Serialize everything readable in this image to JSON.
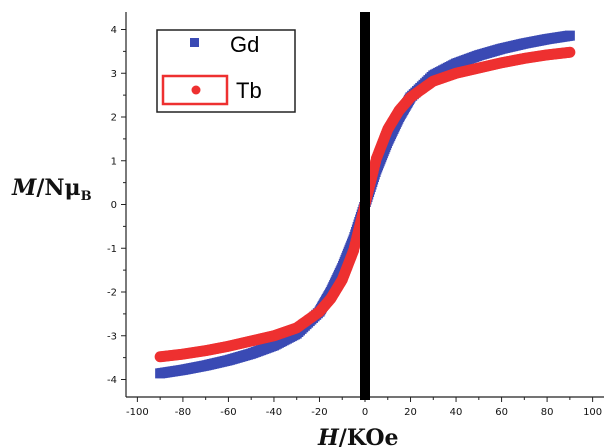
{
  "chart_data": {
    "type": "scatter",
    "title": "",
    "xlabel": "H/KOe",
    "ylabel": "M/NμB",
    "xlim": [
      -105,
      105
    ],
    "ylim": [
      -4.4,
      4.4
    ],
    "xticks": [
      "-100",
      "-80",
      "-60",
      "-40",
      "-20",
      "0",
      "20",
      "40",
      "60",
      "80",
      "100"
    ],
    "yticks": [
      "4",
      "3",
      "2",
      "1",
      "0",
      "-1",
      "-2",
      "-3",
      "-4"
    ],
    "vertical_line_x": 0,
    "legend_position": "top-left",
    "series": [
      {
        "name": "Gd",
        "color": "#3a4ab4",
        "marker": "square",
        "x": [
          -90,
          -80,
          -70,
          -60,
          -50,
          -40,
          -30,
          -20,
          -15,
          -10,
          -5,
          0,
          5,
          10,
          15,
          20,
          30,
          40,
          50,
          60,
          70,
          80,
          90
        ],
        "y": [
          -3.86,
          -3.78,
          -3.68,
          -3.56,
          -3.41,
          -3.22,
          -2.95,
          -2.45,
          -2.0,
          -1.45,
          -0.8,
          0,
          0.8,
          1.45,
          2.0,
          2.45,
          2.95,
          3.22,
          3.41,
          3.56,
          3.68,
          3.78,
          3.86
        ]
      },
      {
        "name": "Tb",
        "color": "#ee3030",
        "marker": "circle",
        "x": [
          -90,
          -80,
          -70,
          -60,
          -50,
          -40,
          -30,
          -20,
          -15,
          -10,
          -5,
          0,
          5,
          10,
          15,
          20,
          30,
          40,
          50,
          60,
          70,
          80,
          90
        ],
        "y": [
          -3.48,
          -3.42,
          -3.34,
          -3.24,
          -3.12,
          -3.0,
          -2.82,
          -2.45,
          -2.15,
          -1.72,
          -1.05,
          0,
          1.05,
          1.72,
          2.15,
          2.45,
          2.82,
          3.0,
          3.12,
          3.24,
          3.34,
          3.42,
          3.48
        ]
      }
    ]
  }
}
